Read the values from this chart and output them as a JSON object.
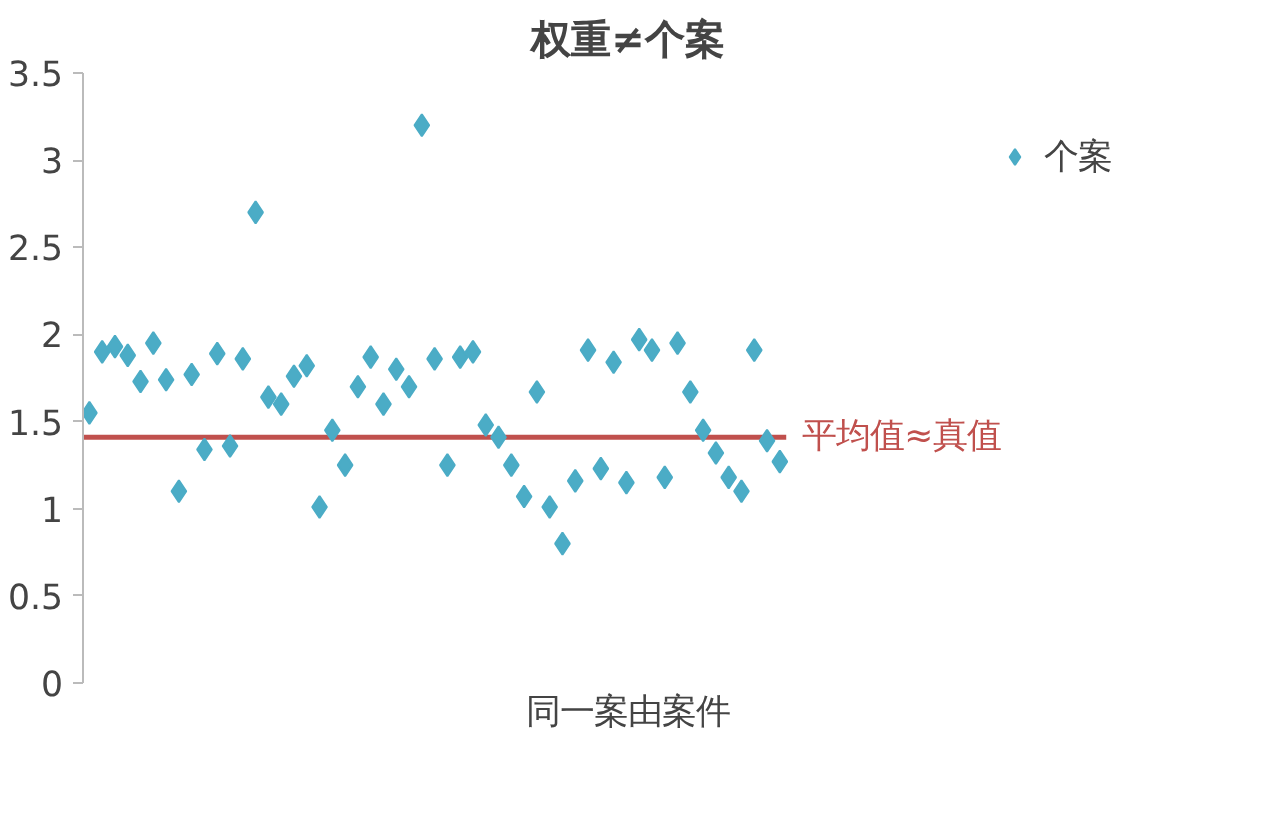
{
  "chart_data": {
    "type": "scatter",
    "title": "权重≠个案",
    "xlabel": "同一案由案件",
    "categories": [
      null,
      null,
      null,
      null,
      null,
      null,
      null,
      null,
      null,
      null,
      null,
      null,
      null,
      null,
      null,
      null,
      null,
      null,
      null,
      null,
      null,
      null,
      null,
      null,
      null,
      null,
      null,
      null,
      null,
      null,
      null,
      null,
      null,
      null,
      null,
      null,
      null,
      null,
      null,
      null,
      null,
      null,
      null,
      null,
      null,
      null,
      null,
      null,
      null,
      null,
      null,
      null,
      null,
      null,
      null
    ],
    "series": [
      {
        "name": "个案",
        "color": "#4bacc6",
        "values": [
          1.55,
          1.9,
          1.93,
          1.88,
          1.73,
          1.95,
          1.74,
          1.1,
          1.77,
          1.34,
          1.89,
          1.36,
          1.86,
          2.7,
          1.64,
          1.6,
          1.76,
          1.82,
          1.01,
          1.45,
          1.25,
          1.7,
          1.87,
          1.6,
          1.8,
          1.7,
          3.2,
          1.86,
          1.25,
          1.87,
          1.9,
          1.48,
          1.41,
          1.25,
          1.07,
          1.67,
          1.01,
          0.8,
          1.16,
          1.91,
          1.23,
          1.84,
          1.15,
          1.97,
          1.91,
          1.18,
          1.95,
          1.67,
          1.45,
          1.32,
          1.18,
          1.1,
          1.91,
          1.39,
          1.27
        ]
      }
    ],
    "ylim": [
      0,
      3.5
    ],
    "yticks": [
      0,
      {
        "value": 0.5,
        "label": "0.5"
      },
      1,
      {
        "value": 1.5,
        "label": "1.5"
      },
      2,
      {
        "value": 2.5,
        "label": "2.5"
      },
      3,
      {
        "value": 3.5,
        "label": "3.5"
      }
    ],
    "ref_lines": [
      {
        "axis": "y",
        "value": 1.41,
        "label": "平均值≈真值",
        "color": "#c0504d"
      }
    ],
    "marker": "diamond",
    "legend": "top right",
    "grid": false,
    "tick_labels": "y"
  }
}
